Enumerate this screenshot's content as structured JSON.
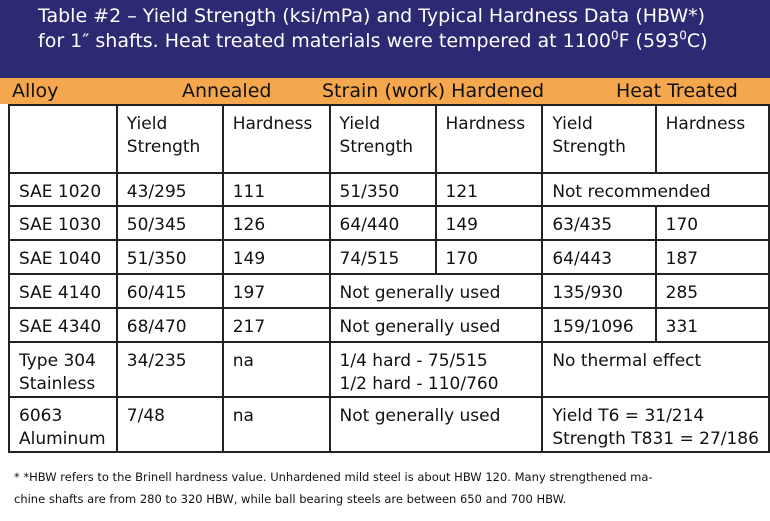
{
  "title": {
    "line1_main": "Table #2 – Yield Strength (ksi/mPa) and Typical Hardness Data (HBW*)",
    "line2_main": "for 1″ shafts. Heat treated materials were tempered at 1100",
    "deg": "0",
    "line2_f": "F (593",
    "line2_c": "C)"
  },
  "categories": {
    "alloy": "Alloy",
    "annealed": "Annealed",
    "strain": "Strain (work) Hardened",
    "heat": "Heat Treated"
  },
  "table": {
    "header": {
      "yield_line1": "Yield",
      "yield_line2": "Strength",
      "hardness": "Hardness"
    },
    "rows": [
      {
        "alloy": [
          "SAE 1020"
        ],
        "ann_yield": "43/295",
        "ann_hard": "111",
        "sh_yield": "51/350",
        "sh_hard": "121",
        "ht_merged": [
          "Not recommended"
        ]
      },
      {
        "alloy": [
          "SAE 1030"
        ],
        "ann_yield": "50/345",
        "ann_hard": "126",
        "sh_yield": "64/440",
        "sh_hard": "149",
        "ht_yield": "63/435",
        "ht_hard": "170"
      },
      {
        "alloy": [
          "SAE 1040"
        ],
        "ann_yield": "51/350",
        "ann_hard": "149",
        "sh_yield": "74/515",
        "sh_hard": "170",
        "ht_yield": "64/443",
        "ht_hard": "187"
      },
      {
        "alloy": [
          "SAE 4140"
        ],
        "ann_yield": "60/415",
        "ann_hard": "197",
        "sh_merged": [
          "Not generally used"
        ],
        "ht_yield": "135/930",
        "ht_hard": "285"
      },
      {
        "alloy": [
          "SAE 4340"
        ],
        "ann_yield": "68/470",
        "ann_hard": "217",
        "sh_merged": [
          "Not generally used"
        ],
        "ht_yield": "159/1096",
        "ht_hard": "331"
      },
      {
        "alloy": [
          "Type 304",
          "Stainless"
        ],
        "ann_yield": "34/235",
        "ann_hard": "na",
        "sh_merged": [
          "1/4 hard - 75/515",
          "1/2 hard - 110/760"
        ],
        "ht_merged": [
          "No thermal effect"
        ]
      },
      {
        "alloy": [
          "6063",
          "Aluminum"
        ],
        "ann_yield": "7/48",
        "ann_hard": "na",
        "sh_merged": [
          "Not generally used"
        ],
        "ht_merged": [
          "Yield T6 = 31/214",
          "Strength T831 = 27/186"
        ]
      }
    ]
  },
  "footnote": {
    "line1": "* *HBW refers to the Brinell hardness value. Unhardened mild steel is about HBW 120. Many strengthened ma-",
    "line2": "chine shafts are from 280 to 320 HBW, while ball bearing steels are between 650 and 700 HBW."
  }
}
